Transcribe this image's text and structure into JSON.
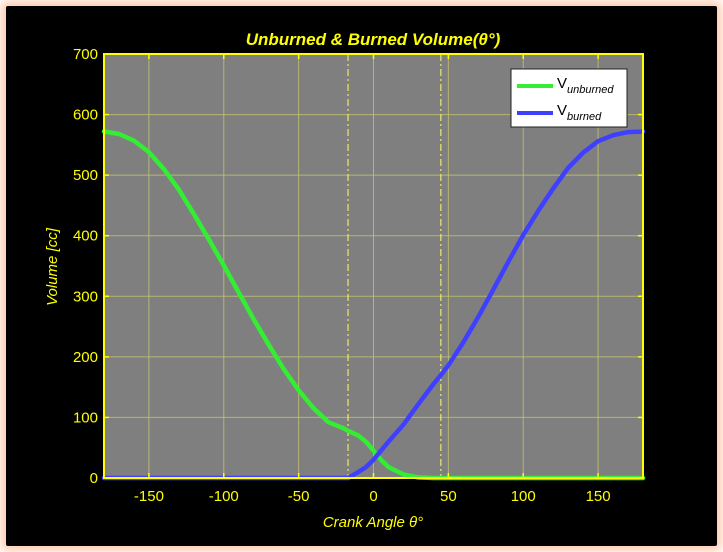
{
  "chart_data": {
    "type": "line",
    "title": "Unburned & Burned Volume(θ°)",
    "xlabel": "Crank Angle θ°",
    "ylabel": "Volume [cc]",
    "xlim": [
      -180,
      180
    ],
    "ylim": [
      0,
      700
    ],
    "xticks": [
      -150,
      -100,
      -50,
      0,
      50,
      100,
      150
    ],
    "yticks": [
      0,
      100,
      200,
      300,
      400,
      500,
      600,
      700
    ],
    "grid": true,
    "legend_position": "top-right",
    "vlines": [
      -17,
      45
    ],
    "x": [
      -180,
      -170,
      -160,
      -150,
      -140,
      -130,
      -120,
      -110,
      -100,
      -90,
      -80,
      -70,
      -60,
      -50,
      -40,
      -30,
      -20,
      -17,
      -10,
      -5,
      0,
      5,
      10,
      20,
      30,
      40,
      45,
      50,
      60,
      70,
      80,
      90,
      100,
      110,
      120,
      130,
      140,
      150,
      160,
      170,
      180
    ],
    "series": [
      {
        "name": "V_unburned",
        "color": "#33ee33",
        "values": [
          572,
          568,
          557,
          538,
          510,
          476,
          436,
          394,
          351,
          306,
          262,
          220,
          180,
          145,
          115,
          92,
          82,
          78,
          70,
          60,
          45,
          30,
          18,
          6,
          1,
          0,
          0,
          0,
          0,
          0,
          0,
          0,
          0,
          0,
          0,
          0,
          0,
          0,
          0,
          0,
          0
        ]
      },
      {
        "name": "V_burned",
        "color": "#3f3fff",
        "values": [
          0,
          0,
          0,
          0,
          0,
          0,
          0,
          0,
          0,
          0,
          0,
          0,
          0,
          0,
          0,
          0,
          0,
          0,
          10,
          18,
          30,
          45,
          60,
          88,
          122,
          155,
          170,
          186,
          224,
          266,
          311,
          357,
          401,
          441,
          478,
          512,
          537,
          556,
          566,
          571,
          572
        ]
      }
    ]
  },
  "legend": {
    "unburned_base": "V",
    "unburned_sub": "unburned",
    "burned_base": "V",
    "burned_sub": "burned"
  },
  "colors": {
    "axes_bg": "#7f7f7f",
    "axis_color": "#ffff00",
    "grid_color": "#c8c86e",
    "legend_text": "#000000"
  }
}
